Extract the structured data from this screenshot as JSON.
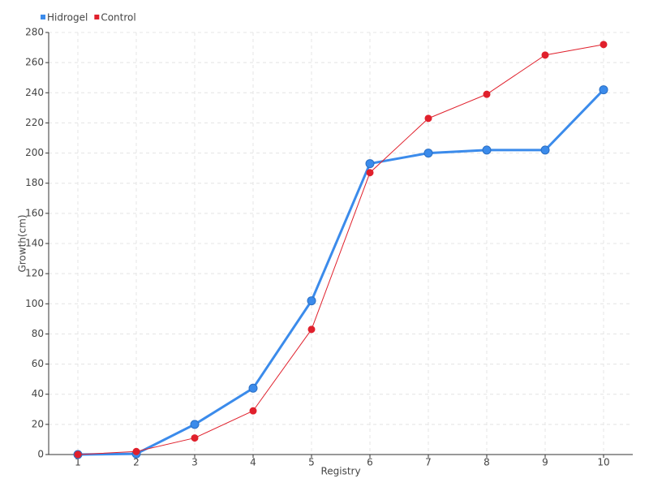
{
  "chart_data": {
    "type": "line",
    "x_label": "Registry",
    "y_label": "Growth(cm)",
    "x": [
      1,
      2,
      3,
      4,
      5,
      6,
      7,
      8,
      9,
      10
    ],
    "series": [
      {
        "name": "Hidrogel",
        "color": "#3b8beb",
        "values": [
          0,
          0.5,
          20,
          44,
          102,
          193,
          200,
          202,
          202,
          242
        ]
      },
      {
        "name": "Control",
        "color": "#e0202c",
        "values": [
          0,
          2,
          11,
          29,
          83,
          187,
          223,
          239,
          265,
          272
        ]
      }
    ],
    "xlim": [
      0.5,
      10.5
    ],
    "xticks": [
      1,
      2,
      3,
      4,
      5,
      6,
      7,
      8,
      9,
      10
    ],
    "ylim": [
      0,
      280
    ],
    "yticks": [
      0,
      20,
      40,
      60,
      80,
      100,
      120,
      140,
      160,
      180,
      200,
      220,
      240,
      260,
      280
    ],
    "grid": true,
    "legend": "top-left"
  }
}
